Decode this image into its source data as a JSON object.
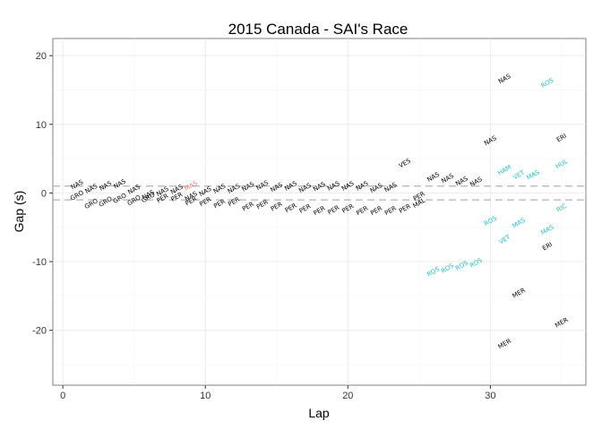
{
  "chart_data": {
    "type": "scatter",
    "title": "2015 Canada - SAI's Race",
    "xlabel": "Lap",
    "ylabel": "Gap (s)",
    "xlim": [
      -0.7,
      36.7
    ],
    "ylim": [
      -28,
      22.5
    ],
    "xticks": [
      0,
      10,
      20,
      30
    ],
    "yticks": [
      -20,
      -10,
      0,
      10,
      20
    ],
    "reference_lines": [
      1,
      -1
    ],
    "grid": true,
    "legend": "none",
    "colors": {
      "behind": "#000000",
      "ahead_pit": "#1fbfc4",
      "highlight": "#f8766d",
      "reference": "#b3b3b3",
      "panel_border": "#808080",
      "grid": "#ebebeb"
    },
    "points": [
      {
        "x": 1,
        "y": 1.2,
        "label": "NAS",
        "color": "behind"
      },
      {
        "x": 1,
        "y": -0.4,
        "label": "GRO",
        "color": "behind"
      },
      {
        "x": 2,
        "y": 0.6,
        "label": "NAS",
        "color": "behind"
      },
      {
        "x": 2,
        "y": -1.6,
        "label": "GRO",
        "color": "behind"
      },
      {
        "x": 3,
        "y": 1.0,
        "label": "NAS",
        "color": "behind"
      },
      {
        "x": 3,
        "y": -1.3,
        "label": "GRO",
        "color": "behind"
      },
      {
        "x": 4,
        "y": 1.3,
        "label": "NAS",
        "color": "behind"
      },
      {
        "x": 4,
        "y": -0.8,
        "label": "GRO",
        "color": "behind"
      },
      {
        "x": 5,
        "y": 0.5,
        "label": "NAS",
        "color": "behind"
      },
      {
        "x": 5,
        "y": -1.1,
        "label": "GRO",
        "color": "behind"
      },
      {
        "x": 6,
        "y": -0.7,
        "label": "GRO",
        "color": "behind"
      },
      {
        "x": 6,
        "y": -0.3,
        "label": "NAS",
        "color": "behind"
      },
      {
        "x": 7,
        "y": 0.2,
        "label": "NAS",
        "color": "behind"
      },
      {
        "x": 7,
        "y": -0.8,
        "label": "PER",
        "color": "behind"
      },
      {
        "x": 8,
        "y": 0.5,
        "label": "NAS",
        "color": "behind"
      },
      {
        "x": 8,
        "y": -0.6,
        "label": "PER",
        "color": "behind"
      },
      {
        "x": 9,
        "y": 1.0,
        "label": "MAS",
        "color": "highlight"
      },
      {
        "x": 9,
        "y": -0.5,
        "label": "NAS",
        "color": "behind"
      },
      {
        "x": 9,
        "y": -1.2,
        "label": "PER",
        "color": "behind"
      },
      {
        "x": 10,
        "y": 0.2,
        "label": "NAS",
        "color": "behind"
      },
      {
        "x": 10,
        "y": -1.3,
        "label": "PER",
        "color": "behind"
      },
      {
        "x": 11,
        "y": 0.6,
        "label": "NAS",
        "color": "behind"
      },
      {
        "x": 11,
        "y": -1.6,
        "label": "PER",
        "color": "behind"
      },
      {
        "x": 12,
        "y": 0.6,
        "label": "NAS",
        "color": "behind"
      },
      {
        "x": 12,
        "y": -1.3,
        "label": "PER",
        "color": "behind"
      },
      {
        "x": 13,
        "y": 0.9,
        "label": "NAS",
        "color": "behind"
      },
      {
        "x": 13,
        "y": -2.0,
        "label": "PER",
        "color": "behind"
      },
      {
        "x": 14,
        "y": 1.1,
        "label": "NAS",
        "color": "behind"
      },
      {
        "x": 14,
        "y": -1.7,
        "label": "PER",
        "color": "behind"
      },
      {
        "x": 15,
        "y": 0.8,
        "label": "NAS",
        "color": "behind"
      },
      {
        "x": 15,
        "y": -2.0,
        "label": "PER",
        "color": "behind"
      },
      {
        "x": 16,
        "y": 1.0,
        "label": "NAS",
        "color": "behind"
      },
      {
        "x": 16,
        "y": -2.2,
        "label": "PER",
        "color": "behind"
      },
      {
        "x": 17,
        "y": 0.7,
        "label": "NAS",
        "color": "behind"
      },
      {
        "x": 17,
        "y": -2.3,
        "label": "PER",
        "color": "behind"
      },
      {
        "x": 18,
        "y": 0.9,
        "label": "NAS",
        "color": "behind"
      },
      {
        "x": 18,
        "y": -2.6,
        "label": "PER",
        "color": "behind"
      },
      {
        "x": 19,
        "y": 1.0,
        "label": "NAS",
        "color": "behind"
      },
      {
        "x": 19,
        "y": -2.5,
        "label": "PER",
        "color": "behind"
      },
      {
        "x": 20,
        "y": 1.0,
        "label": "NAS",
        "color": "behind"
      },
      {
        "x": 20,
        "y": -2.3,
        "label": "PER",
        "color": "behind"
      },
      {
        "x": 21,
        "y": 1.0,
        "label": "NAS",
        "color": "behind"
      },
      {
        "x": 21,
        "y": -2.6,
        "label": "PER",
        "color": "behind"
      },
      {
        "x": 22,
        "y": 0.7,
        "label": "NAS",
        "color": "behind"
      },
      {
        "x": 22,
        "y": -2.6,
        "label": "PER",
        "color": "behind"
      },
      {
        "x": 23,
        "y": 0.8,
        "label": "NAS",
        "color": "behind"
      },
      {
        "x": 23,
        "y": -2.6,
        "label": "PER",
        "color": "behind"
      },
      {
        "x": 24,
        "y": 4.3,
        "label": "VES",
        "color": "behind"
      },
      {
        "x": 24,
        "y": -2.3,
        "label": "PER",
        "color": "behind"
      },
      {
        "x": 25,
        "y": -0.5,
        "label": "PER",
        "color": "behind"
      },
      {
        "x": 25,
        "y": -1.5,
        "label": "MAL",
        "color": "behind"
      },
      {
        "x": 26,
        "y": 2.3,
        "label": "NAS",
        "color": "behind"
      },
      {
        "x": 26,
        "y": -11.5,
        "label": "ROS",
        "color": "ahead_pit"
      },
      {
        "x": 27,
        "y": 2.1,
        "label": "NAS",
        "color": "behind"
      },
      {
        "x": 27,
        "y": -11.0,
        "label": "ROS",
        "color": "ahead_pit"
      },
      {
        "x": 28,
        "y": 1.7,
        "label": "NAS",
        "color": "behind"
      },
      {
        "x": 28,
        "y": -10.6,
        "label": "ROS",
        "color": "ahead_pit"
      },
      {
        "x": 29,
        "y": 1.6,
        "label": "NAS",
        "color": "behind"
      },
      {
        "x": 29,
        "y": -10.2,
        "label": "ROS",
        "color": "ahead_pit"
      },
      {
        "x": 30,
        "y": 7.6,
        "label": "NAS",
        "color": "behind"
      },
      {
        "x": 30,
        "y": -4.1,
        "label": "ROS",
        "color": "ahead_pit"
      },
      {
        "x": 31,
        "y": 16.6,
        "label": "NAS",
        "color": "behind"
      },
      {
        "x": 31,
        "y": 3.3,
        "label": "HAM",
        "color": "ahead_pit"
      },
      {
        "x": 31,
        "y": -6.8,
        "label": "VET",
        "color": "ahead_pit"
      },
      {
        "x": 31,
        "y": -22.0,
        "label": "MER",
        "color": "behind"
      },
      {
        "x": 32,
        "y": 2.6,
        "label": "VET",
        "color": "ahead_pit"
      },
      {
        "x": 32,
        "y": -4.4,
        "label": "MAS",
        "color": "ahead_pit"
      },
      {
        "x": 32,
        "y": -14.6,
        "label": "MER",
        "color": "behind"
      },
      {
        "x": 33,
        "y": 2.6,
        "label": "MAS",
        "color": "ahead_pit"
      },
      {
        "x": 34,
        "y": 16.0,
        "label": "ROS",
        "color": "ahead_pit"
      },
      {
        "x": 34,
        "y": -5.4,
        "label": "MAS",
        "color": "ahead_pit"
      },
      {
        "x": 34,
        "y": -7.8,
        "label": "ERI",
        "color": "behind"
      },
      {
        "x": 35,
        "y": 8.0,
        "label": "ERI",
        "color": "behind"
      },
      {
        "x": 35,
        "y": 4.2,
        "label": "HUL",
        "color": "ahead_pit"
      },
      {
        "x": 35,
        "y": -2.2,
        "label": "RIC",
        "color": "ahead_pit"
      },
      {
        "x": 35,
        "y": -18.9,
        "label": "MER",
        "color": "behind"
      }
    ]
  }
}
